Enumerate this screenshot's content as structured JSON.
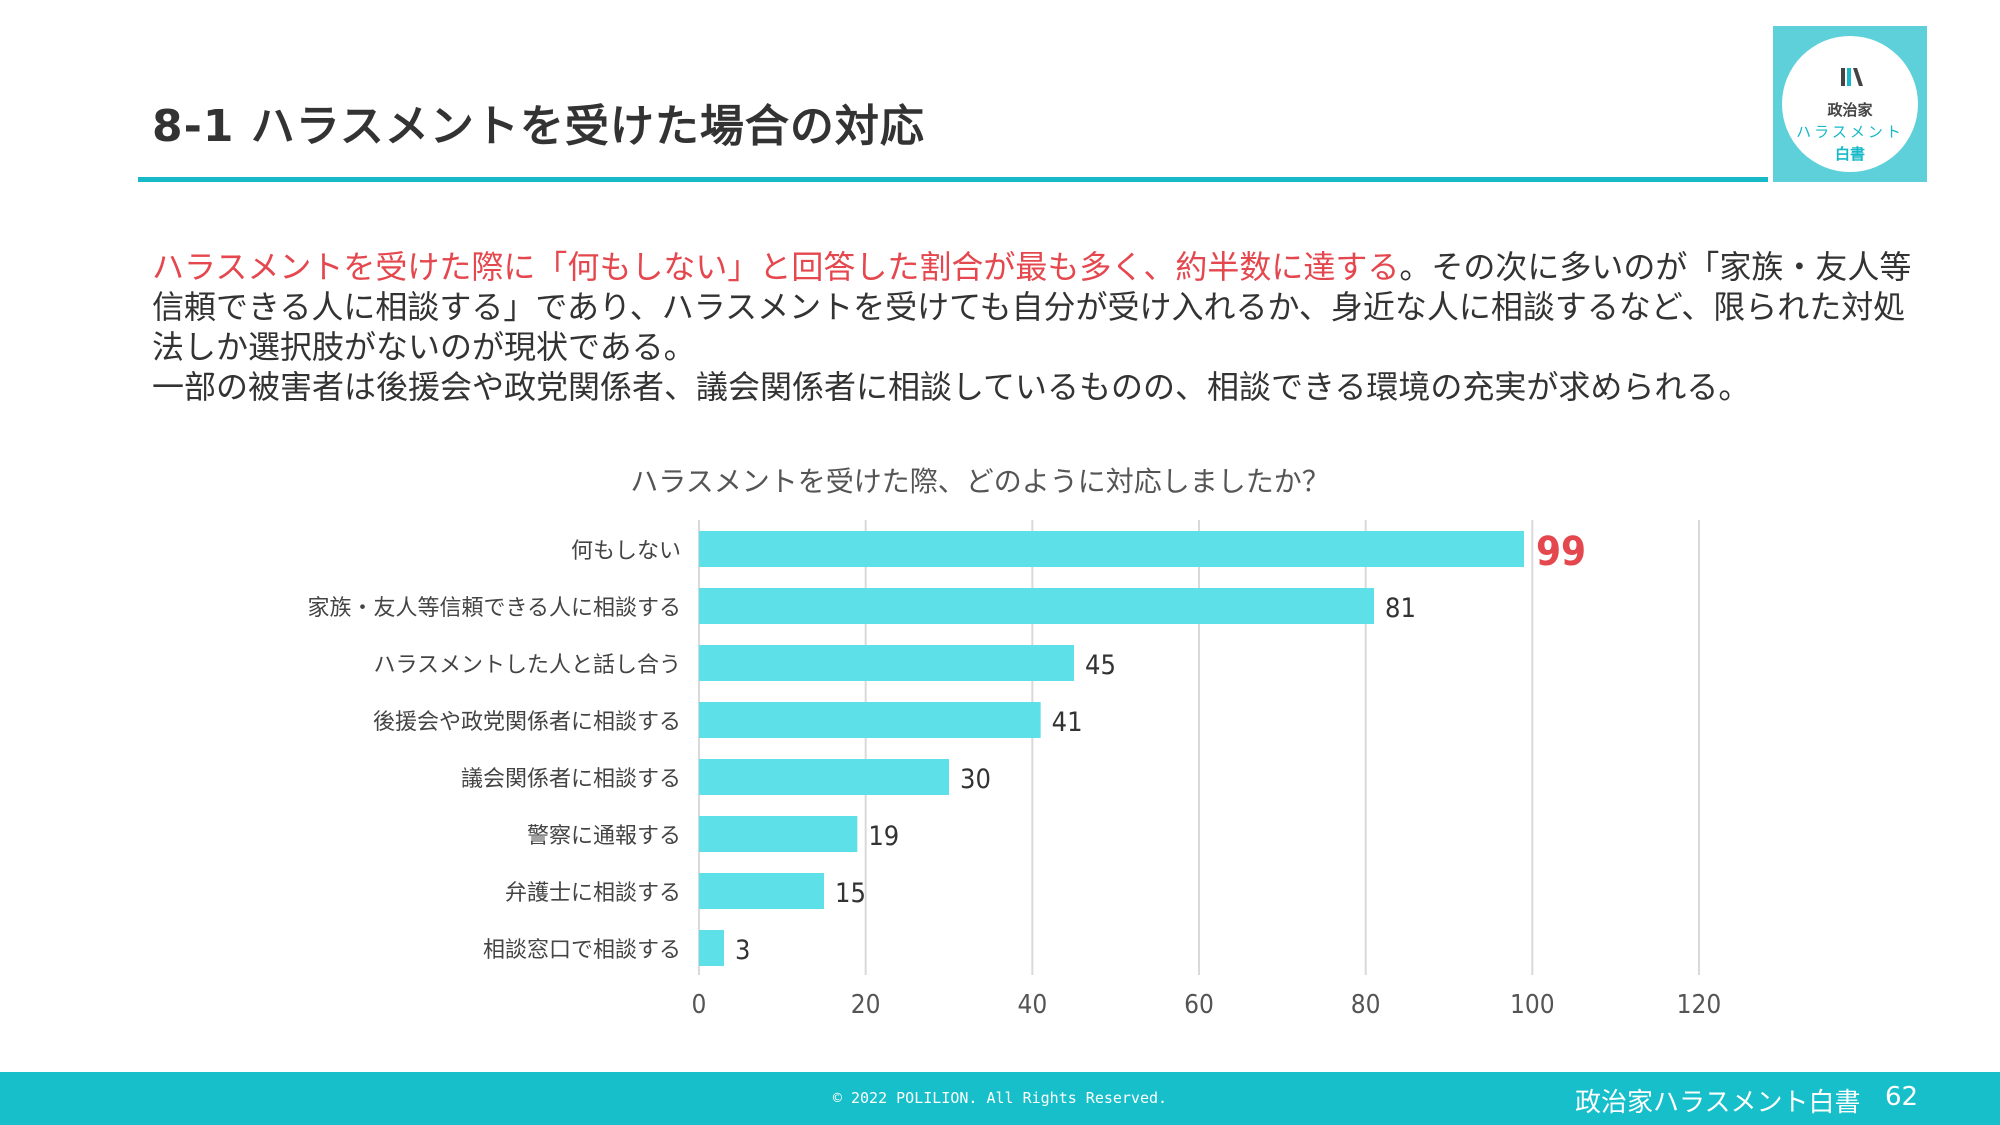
{
  "page_title": "8-1 ハラスメントを受けた場合の対応",
  "logo": {
    "line1": "政治家",
    "line2": "ハラスメント",
    "line3": "白書"
  },
  "body": {
    "highlight": "ハラスメントを受けた際に「何もしない」と回答した割合が最も多く、約半数に達する",
    "rest": "。その次に多いのが「家族・友人等信頼できる人に相談する」であり、ハラスメントを受けても自分が受け入れるか、身近な人に相談するなど、限られた対処法しか選択肢がないのが現状である。",
    "para2": "一部の被害者は後援会や政党関係者、議会関係者に相談しているものの、相談できる環境の充実が求められる。"
  },
  "chart_data": {
    "type": "bar",
    "orientation": "horizontal",
    "title": "ハラスメントを受けた際、どのように対応しましたか？",
    "categories": [
      "何もしない",
      "家族・友人等信頼できる人に相談する",
      "ハラスメントした人と話し合う",
      "後援会や政党関係者に相談する",
      "議会関係者に相談する",
      "警察に通報する",
      "弁護士に相談する",
      "相談窓口で相談する"
    ],
    "values": [
      99,
      81,
      45,
      41,
      30,
      19,
      15,
      3
    ],
    "xlim": [
      0,
      120
    ],
    "xticks": [
      0,
      20,
      40,
      60,
      80,
      100,
      120
    ],
    "grid": true,
    "bar_color": "#5ee0e8",
    "highlight_index": 0,
    "highlight_color": "#e4474d",
    "label_color": "#333333"
  },
  "footer": {
    "copyright": "© 2022 POLILION. All Rights Reserved.",
    "brand": "政治家ハラスメント白書",
    "page_number": "62"
  }
}
